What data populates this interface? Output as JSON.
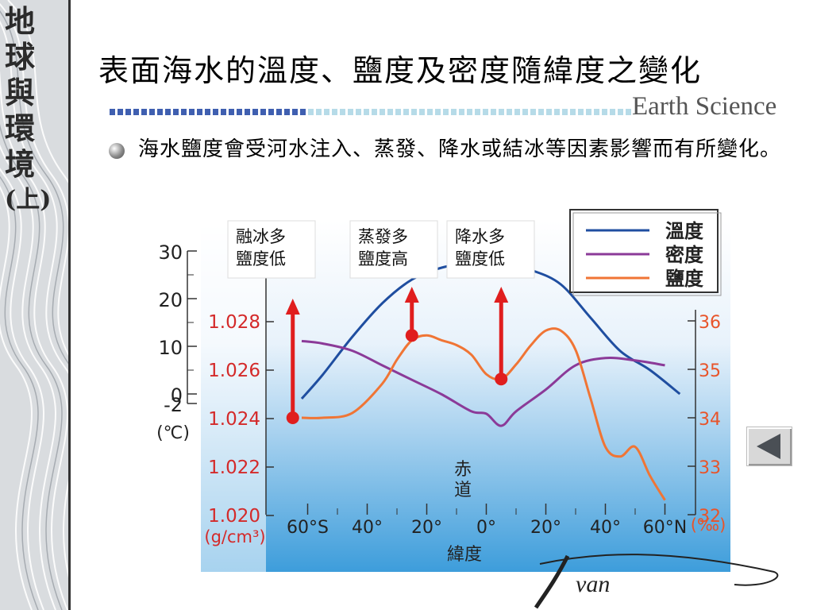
{
  "sidebar": {
    "book_title": [
      "地",
      "球",
      "與",
      "環",
      "境",
      "(上)"
    ]
  },
  "header": {
    "title": "表面海水的溫度、鹽度及密度隨緯度之變化",
    "brand": "Earth Science"
  },
  "bullet_text": "海水鹽度會受河水注入、蒸發、降水或結冰等因素影響而有所變化。",
  "signature": "van",
  "nav": {
    "back_icon": "triangle-left-icon"
  },
  "chart_data": {
    "type": "line",
    "xlabel": "緯度",
    "x_ticks": [
      "60°S",
      "40°",
      "20°",
      "0°",
      "20°",
      "40°",
      "60°N"
    ],
    "x_range": [
      -70,
      70
    ],
    "equator_label": "赤\n道",
    "axes": {
      "temperature": {
        "ticks": [
          "30",
          "20",
          "10",
          "0",
          "-2"
        ],
        "unit": "(℃)",
        "range": [
          -2,
          30
        ],
        "color": "#222222"
      },
      "density": {
        "ticks": [
          "1.028",
          "1.026",
          "1.024",
          "1.022",
          "1.020"
        ],
        "unit": "(g/cm³)",
        "range": [
          1.02,
          1.028
        ],
        "color": "#d42a2a"
      },
      "salinity": {
        "ticks": [
          "36",
          "35",
          "34",
          "33",
          "32"
        ],
        "unit": "(‰)",
        "range": [
          32,
          36
        ],
        "color": "#e8542a"
      }
    },
    "legend": [
      {
        "label": "溫度",
        "color": "#1f4ea0"
      },
      {
        "label": "密度",
        "color": "#8b3a98"
      },
      {
        "label": "鹽度",
        "color": "#f07535"
      }
    ],
    "series": [
      {
        "name": "溫度",
        "axis": "temperature",
        "color": "#1f4ea0",
        "x": [
          -62,
          -55,
          -45,
          -35,
          -25,
          -15,
          -5,
          5,
          15,
          25,
          35,
          45,
          55,
          65
        ],
        "y": [
          -1,
          4,
          12,
          19,
          24,
          26.5,
          27.5,
          27.5,
          26,
          23,
          16,
          9,
          5,
          0
        ]
      },
      {
        "name": "密度",
        "axis": "density",
        "color": "#8b3a98",
        "x": [
          -62,
          -55,
          -45,
          -35,
          -25,
          -15,
          -5,
          0,
          5,
          10,
          20,
          30,
          40,
          50,
          60
        ],
        "y": [
          1.0272,
          1.0271,
          1.0268,
          1.0262,
          1.0256,
          1.025,
          1.0243,
          1.0242,
          1.0237,
          1.0243,
          1.0252,
          1.0262,
          1.0265,
          1.0264,
          1.0262
        ]
      },
      {
        "name": "鹽度",
        "axis": "salinity",
        "color": "#f07535",
        "x": [
          -62,
          -55,
          -45,
          -35,
          -30,
          -25,
          -20,
          -15,
          -10,
          -5,
          0,
          5,
          10,
          15,
          20,
          25,
          30,
          35,
          40,
          45,
          50,
          55,
          60
        ],
        "y": [
          34.0,
          34.0,
          34.1,
          34.7,
          35.2,
          35.6,
          35.7,
          35.6,
          35.5,
          35.3,
          34.9,
          34.8,
          35.1,
          35.5,
          35.8,
          35.8,
          35.4,
          34.4,
          33.4,
          33.2,
          33.4,
          32.8,
          32.3
        ]
      }
    ],
    "annotations": [
      {
        "text": "融冰多\n鹽度低",
        "arrow_x": -65,
        "arrow_y_salinity": 34.0
      },
      {
        "text": "蒸發多\n鹽度高",
        "arrow_x": -25,
        "arrow_y_salinity": 35.7
      },
      {
        "text": "降水多\n鹽度低",
        "arrow_x": 5,
        "arrow_y_salinity": 34.8
      }
    ]
  }
}
